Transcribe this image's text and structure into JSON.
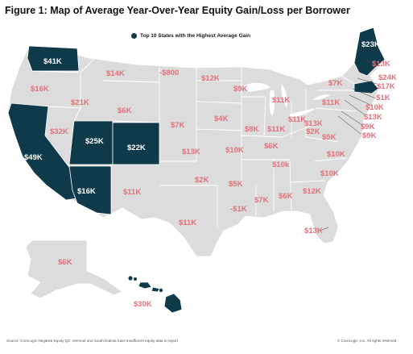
{
  "title": "Figure 1: Map of Average Year-Over-Year Equity Gain/Loss per Borrower",
  "legend": {
    "label": "Top 10 States with the Highest Average Gain"
  },
  "colors": {
    "land": "#dcdcdc",
    "border": "#ffffff",
    "highlight": "#0e3a4a",
    "label": "#e0727a"
  },
  "states": {
    "WA": "$41K",
    "OR": "$16K",
    "CA": "$49K",
    "ID": "$21K",
    "NV": "$32K",
    "MT": "$14K",
    "WY": "$6K",
    "UT": "$25K",
    "AZ": "$16K",
    "CO": "$22K",
    "NM": "$11K",
    "ND": "-$800",
    "SD": "$12K",
    "NE": "$7K",
    "KS": "$13K",
    "OK": "$2K",
    "TX": "$11K",
    "MN": "$9K",
    "IA": "$4K",
    "MO": "$10K",
    "AR": "$5K",
    "LA": "-$1K",
    "WI": "$11K",
    "IL": "$8K",
    "MI": "$11K",
    "IN": "$11K",
    "OH": "$11K",
    "KY": "$6K",
    "TN": "$10k",
    "MS": "$7K",
    "AL": "$6K",
    "GA": "$12K",
    "FL": "$13K",
    "SC": "$10K",
    "NC": "$10K",
    "VA": "$5K",
    "WV": "$2K",
    "PA": "$7K",
    "NY": "$13K",
    "VT": "$13K",
    "ME": "$23K",
    "NH": "$17K",
    "MA": "$24K",
    "RI": "-$1K",
    "CT": "$10K",
    "NJ": "$13K",
    "DE": "$9K",
    "MD": "$9K",
    "AK": "$6K",
    "HI": "$30K"
  },
  "footer": {
    "source": "Source: CoreLogic Negative Equity Q2. Vermont and South Dakota have insufficient equity data to report",
    "copyright": "© CoreLogic, Inc. All rights reserved"
  }
}
